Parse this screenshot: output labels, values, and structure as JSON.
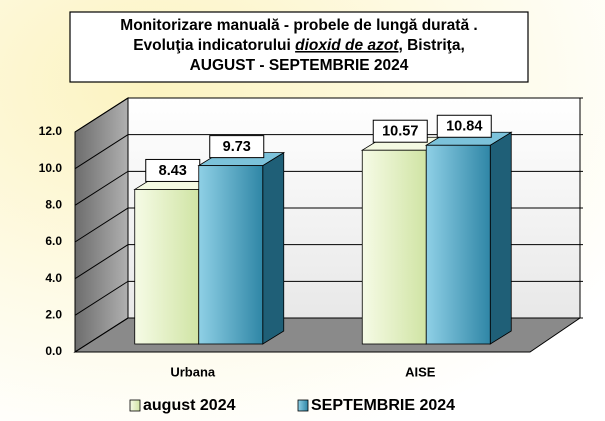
{
  "chart_data": {
    "type": "bar3d",
    "title": [
      [
        "Monitorizare manuală - probele de lungă durată ."
      ],
      [
        "Evoluţia indicatorului ",
        "dioxid de azot",
        ", Bistriţa,"
      ],
      [
        "AUGUST  - SEPTEMBRIE 2024"
      ]
    ],
    "categories": [
      "Urbana",
      "AISE"
    ],
    "series": [
      {
        "name": "august 2024",
        "color": "#e4f0c4",
        "values": [
          8.43,
          10.57
        ]
      },
      {
        "name": "SEPTEMBRIE 2024",
        "color": "#3d9cbd",
        "values": [
          9.73,
          10.84
        ]
      }
    ],
    "ylim": [
      0,
      12
    ],
    "yticks": [
      {
        "value": 0,
        "label": "0.0"
      },
      {
        "value": 2,
        "label": "2.0"
      },
      {
        "value": 4,
        "label": "4.0"
      },
      {
        "value": 6,
        "label": "6.0"
      },
      {
        "value": 8,
        "label": "8.0"
      },
      {
        "value": 10,
        "label": "10.0"
      },
      {
        "value": 12,
        "label": "12.0"
      }
    ],
    "grid": true,
    "legend": "bottom"
  }
}
